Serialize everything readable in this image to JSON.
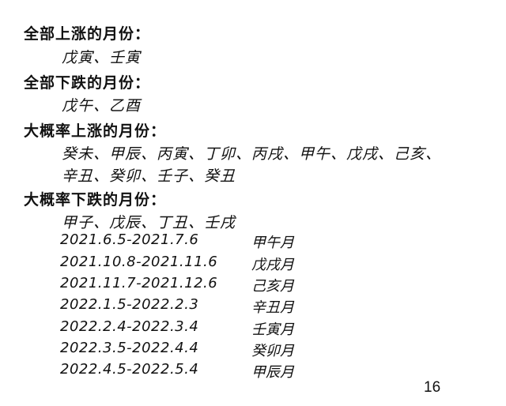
{
  "sections": [
    {
      "heading": "全部上涨的月份：",
      "lines": [
        "戊寅、壬寅"
      ]
    },
    {
      "heading": "全部下跌的月份：",
      "lines": [
        "戊午、乙酉"
      ]
    },
    {
      "heading": "大概率上涨的月份：",
      "lines": [
        "癸未、甲辰、丙寅、丁卯、丙戌、甲午、戊戌、己亥、",
        "辛丑、癸卯、壬子、癸丑"
      ]
    },
    {
      "heading": "大概率下跌的月份：",
      "lines": [
        "甲子、戊辰、丁丑、壬戌"
      ]
    }
  ],
  "periods": [
    {
      "range": "2021.6.5-2021.7.6",
      "month": "甲午月"
    },
    {
      "range": "2021.10.8-2021.11.6",
      "month": "戊戌月"
    },
    {
      "range": "2021.11.7-2021.12.6",
      "month": "己亥月"
    },
    {
      "range": "2022.1.5-2022.2.3",
      "month": "辛丑月"
    },
    {
      "range": "2022.2.4-2022.3.4",
      "month": "壬寅月"
    },
    {
      "range": "2022.3.5-2022.4.4",
      "month": "癸卯月"
    },
    {
      "range": "2022.4.5-2022.5.4",
      "month": "甲辰月"
    }
  ],
  "page_number": "16"
}
